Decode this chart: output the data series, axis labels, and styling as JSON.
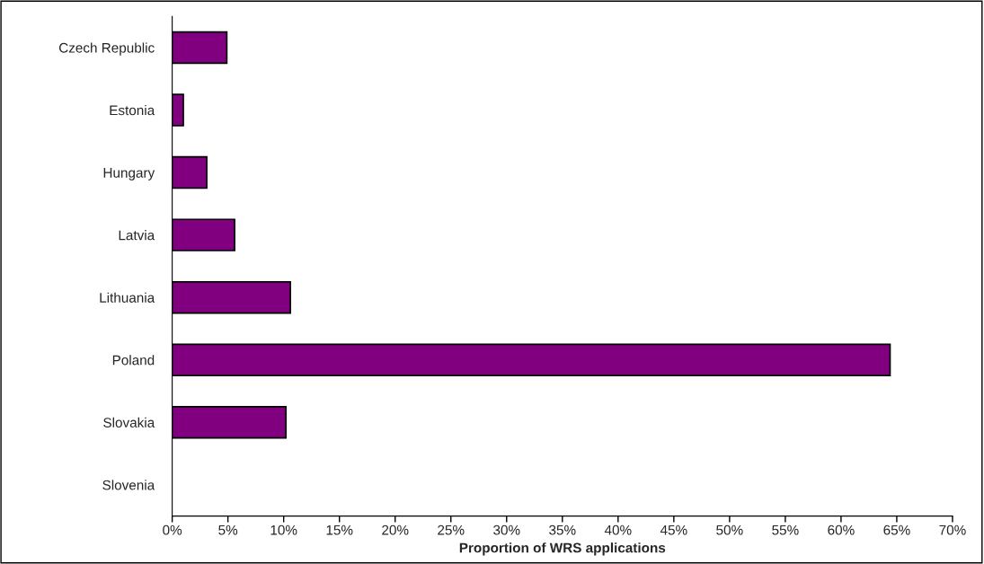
{
  "chart_data": {
    "type": "bar",
    "orientation": "horizontal",
    "xlabel": "Proportion of WRS applications",
    "categories": [
      "Czech Republic",
      "Estonia",
      "Hungary",
      "Latvia",
      "Lithuania",
      "Poland",
      "Slovakia",
      "Slovenia"
    ],
    "values": [
      4.9,
      1.0,
      3.1,
      5.6,
      10.6,
      64.4,
      10.2,
      0
    ],
    "color": "#800080",
    "xlim": [
      0,
      70
    ],
    "xticks": [
      {
        "value": 0,
        "label": "0%"
      },
      {
        "value": 5,
        "label": "5%"
      },
      {
        "value": 10,
        "label": "10%"
      },
      {
        "value": 15,
        "label": "15%"
      },
      {
        "value": 20,
        "label": "20%"
      },
      {
        "value": 25,
        "label": "25%"
      },
      {
        "value": 30,
        "label": "30%"
      },
      {
        "value": 35,
        "label": "35%"
      },
      {
        "value": 40,
        "label": "40%"
      },
      {
        "value": 45,
        "label": "45%"
      },
      {
        "value": 50,
        "label": "50%"
      },
      {
        "value": 55,
        "label": "55%"
      },
      {
        "value": 60,
        "label": "60%"
      },
      {
        "value": 65,
        "label": "65%"
      },
      {
        "value": 70,
        "label": "70%"
      }
    ],
    "grid": false,
    "legend": false
  }
}
